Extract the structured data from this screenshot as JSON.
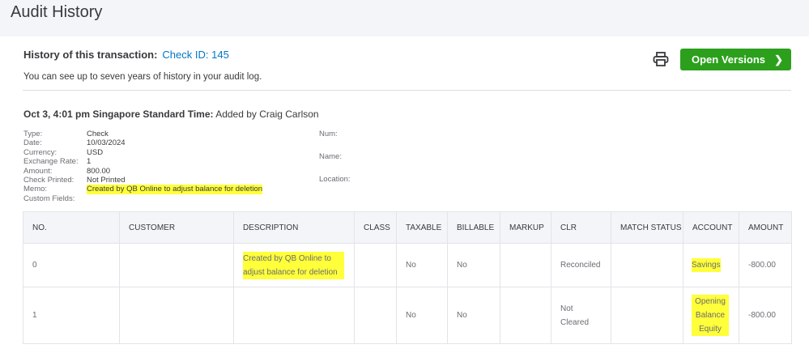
{
  "header": {
    "title": "Audit History"
  },
  "summary": {
    "label": "History of this transaction:",
    "link": "Check ID: 145",
    "note": "You can see up to seven years of history in your audit log.",
    "print_icon": "printer-icon",
    "open_versions": "Open Versions"
  },
  "event": {
    "when": "Oct 3, 4:01 pm Singapore Standard Time:",
    "what": "Added by Craig Carlson"
  },
  "fields": [
    {
      "k": "Type:",
      "v": "Check"
    },
    {
      "k": "Date:",
      "v": "10/03/2024"
    },
    {
      "k": "Currency:",
      "v": "USD"
    },
    {
      "k": "Exchange Rate:",
      "v": "1"
    },
    {
      "k": "Amount:",
      "v": "800.00"
    },
    {
      "k": "Check Printed:",
      "v": "Not Printed"
    },
    {
      "k": "Memo:",
      "v": "Created by QB Online to adjust balance for deletion"
    },
    {
      "k": "Custom Fields:",
      "v": ""
    }
  ],
  "side_fields": [
    "Num:",
    "Name:",
    "Location:"
  ],
  "table": {
    "headers": [
      "NO.",
      "CUSTOMER",
      "DESCRIPTION",
      "CLASS",
      "TAXABLE",
      "BILLABLE",
      "MARKUP",
      "CLR",
      "MATCH STATUS",
      "ACCOUNT",
      "AMOUNT"
    ],
    "rows": [
      [
        "0",
        "",
        "Created by QB Online to adjust balance for deletion",
        "",
        "No",
        "No",
        "",
        "Reconciled",
        "",
        "Savings",
        "-800.00"
      ],
      [
        "1",
        "",
        "",
        "",
        "No",
        "No",
        "",
        "Not Cleared",
        "",
        "Opening Balance Equity",
        "-800.00"
      ]
    ]
  },
  "highlight_color": "#ffff3a",
  "accent": "#2ca01c"
}
